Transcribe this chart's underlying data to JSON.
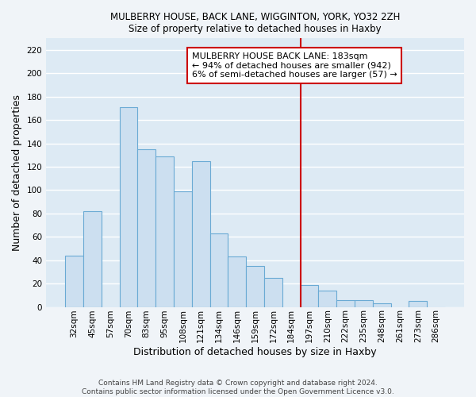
{
  "title": "MULBERRY HOUSE, BACK LANE, WIGGINTON, YORK, YO32 2ZH",
  "subtitle": "Size of property relative to detached houses in Haxby",
  "xlabel": "Distribution of detached houses by size in Haxby",
  "ylabel": "Number of detached properties",
  "bar_color": "#ccdff0",
  "bar_edge_color": "#6aaad4",
  "categories": [
    "32sqm",
    "45sqm",
    "57sqm",
    "70sqm",
    "83sqm",
    "95sqm",
    "108sqm",
    "121sqm",
    "134sqm",
    "146sqm",
    "159sqm",
    "172sqm",
    "184sqm",
    "197sqm",
    "210sqm",
    "222sqm",
    "235sqm",
    "248sqm",
    "261sqm",
    "273sqm",
    "286sqm"
  ],
  "values": [
    44,
    82,
    0,
    171,
    135,
    129,
    99,
    125,
    63,
    43,
    35,
    25,
    0,
    19,
    14,
    6,
    6,
    3,
    0,
    5,
    0
  ],
  "vline_x_index": 12,
  "vline_color": "#cc0000",
  "annotation_title": "MULBERRY HOUSE BACK LANE: 183sqm",
  "annotation_line1": "← 94% of detached houses are smaller (942)",
  "annotation_line2": "6% of semi-detached houses are larger (57) →",
  "footer1": "Contains HM Land Registry data © Crown copyright and database right 2024.",
  "footer2": "Contains public sector information licensed under the Open Government Licence v3.0.",
  "plot_bg_color": "#ddeaf4",
  "fig_bg_color": "#f0f4f8",
  "ylim": [
    0,
    230
  ],
  "yticks": [
    0,
    20,
    40,
    60,
    80,
    100,
    120,
    140,
    160,
    180,
    200,
    220
  ],
  "grid_color": "#ffffff",
  "title_fontsize": 8.5,
  "subtitle_fontsize": 8.5,
  "axis_label_fontsize": 9,
  "tick_fontsize": 7.5,
  "footer_fontsize": 6.5,
  "annotation_fontsize": 8
}
